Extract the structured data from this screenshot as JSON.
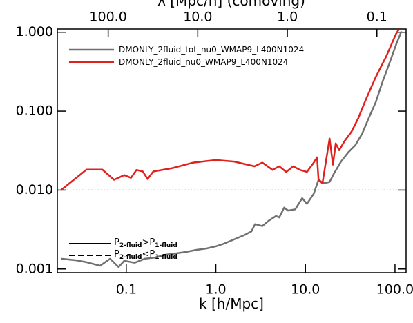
{
  "chart_data": {
    "type": "line",
    "x_label": "k [h/Mpc]",
    "x2_label": "λ [Mpc/h] (comoving)",
    "xscale": "log",
    "yscale": "log",
    "xlim": [
      0.017,
      133
    ],
    "ylim": [
      0.0009,
      1.1
    ],
    "xticks": [
      0.1,
      {
        "value": 1,
        "label": "1.0"
      },
      {
        "value": 10,
        "label": "10.0"
      },
      {
        "value": 100,
        "label": "100.0"
      }
    ],
    "x2ticks": [
      {
        "value": 100,
        "label": "100.0"
      },
      {
        "value": 10,
        "label": "10.0"
      },
      {
        "value": 1,
        "label": "1.0"
      },
      0.1
    ],
    "yticks": [
      {
        "value": 0.001,
        "label": "0.001"
      },
      {
        "value": 0.01,
        "label": "0.010"
      },
      {
        "value": 0.1,
        "label": "0.100"
      },
      {
        "value": 1,
        "label": "1.000"
      }
    ],
    "hline": 0.01,
    "legend": "upper left",
    "series": [
      {
        "name": "DMONLY_2fluid_tot_nu0_WMAP9_L400N1024",
        "color": "#707070",
        "x": [
          0.0187,
          0.0276,
          0.036,
          0.051,
          0.066,
          0.082,
          0.095,
          0.124,
          0.161,
          0.21,
          0.275,
          0.36,
          0.47,
          0.61,
          0.79,
          1.0,
          1.24,
          1.6,
          2.1,
          2.5,
          2.74,
          3.3,
          3.9,
          4.7,
          5.1,
          5.8,
          6.4,
          7.7,
          9.2,
          10.4,
          12.4,
          14,
          16,
          18.6,
          21,
          25,
          30,
          36,
          43,
          51,
          61,
          73,
          87,
          103,
          118
        ],
        "values": [
          0.00135,
          0.00129,
          0.00122,
          0.0011,
          0.00135,
          0.00106,
          0.00127,
          0.0012,
          0.00135,
          0.0014,
          0.00152,
          0.00158,
          0.00165,
          0.00175,
          0.00182,
          0.00194,
          0.0021,
          0.00237,
          0.0027,
          0.003,
          0.0037,
          0.0035,
          0.0041,
          0.0047,
          0.0045,
          0.006,
          0.0055,
          0.0057,
          0.0079,
          0.0067,
          0.009,
          0.0135,
          0.0122,
          0.0127,
          0.0165,
          0.023,
          0.03,
          0.037,
          0.052,
          0.082,
          0.13,
          0.24,
          0.41,
          0.7,
          1.03
        ]
      },
      {
        "name": "DMONLY_2fluid_nu0_WMAP9_L400N1024",
        "color": "#e0201c",
        "x": [
          0.0187,
          0.036,
          0.054,
          0.073,
          0.095,
          0.113,
          0.13,
          0.153,
          0.173,
          0.2,
          0.33,
          0.56,
          1.0,
          1.6,
          2.7,
          3.3,
          4.3,
          5.1,
          6.1,
          7.3,
          8.7,
          10.4,
          12.4,
          13.5,
          14,
          15.5,
          18.6,
          20.3,
          21.8,
          23.8,
          27.4,
          32.7,
          39,
          46.6,
          60.9,
          79.5,
          103,
          110
        ],
        "values": [
          0.01,
          0.0182,
          0.0182,
          0.0135,
          0.0155,
          0.0143,
          0.018,
          0.0172,
          0.0138,
          0.0172,
          0.019,
          0.0223,
          0.024,
          0.023,
          0.02,
          0.0223,
          0.018,
          0.02,
          0.017,
          0.02,
          0.018,
          0.017,
          0.0223,
          0.026,
          0.0135,
          0.0122,
          0.045,
          0.021,
          0.039,
          0.032,
          0.042,
          0.055,
          0.082,
          0.135,
          0.27,
          0.49,
          0.96,
          1.08
        ]
      }
    ],
    "style_legend": [
      {
        "linestyle": "solid",
        "parts": [
          {
            "text": "P"
          },
          {
            "sub": "2-fluid"
          },
          {
            "text": ">P"
          },
          {
            "sub": "1-fluid"
          }
        ]
      },
      {
        "linestyle": "dashed",
        "parts": [
          {
            "text": "P"
          },
          {
            "sub": "2-fluid"
          },
          {
            "text": "<P"
          },
          {
            "sub": "1-fluid"
          }
        ]
      }
    ]
  }
}
